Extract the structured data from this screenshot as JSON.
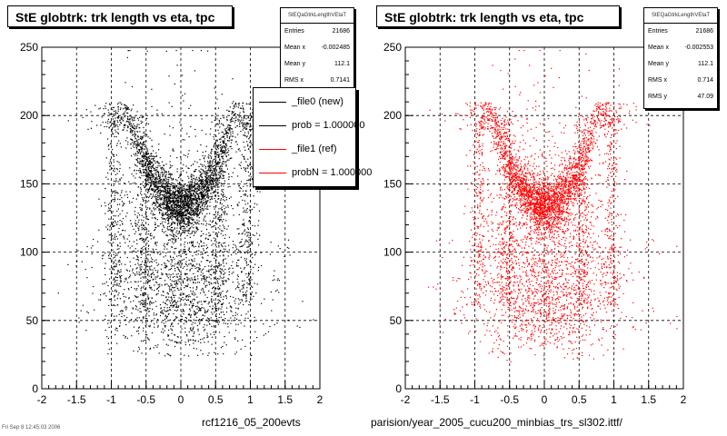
{
  "chart_data": [
    {
      "type": "scatter",
      "title": "StE globtrk: trk length vs eta, tpc",
      "xlim": [
        -2,
        2
      ],
      "ylim": [
        0,
        250
      ],
      "x_ticks": [
        "-2",
        "-1.5",
        "-1",
        "-0.5",
        "0",
        "0.5",
        "1",
        "1.5",
        "2"
      ],
      "y_ticks": [
        "0",
        "50",
        "100",
        "150",
        "200",
        "250"
      ],
      "grid": true,
      "marker_color": "#000000",
      "stats": {
        "name": "StEQaGtrkLengthVEtaT",
        "rows": [
          {
            "label": "Entries",
            "value": "21686"
          },
          {
            "label": "Mean x",
            "value": "-0.002485"
          },
          {
            "label": "Mean y",
            "value": "112.1"
          },
          {
            "label": "RMS x",
            "value": "0.7141"
          }
        ]
      },
      "legend": {
        "entries": [
          {
            "label": "_file0 (new)",
            "color": "#000000"
          },
          {
            "label": "prob = 1.000000",
            "color": "#000000"
          },
          {
            "label": "_file1 (ref)",
            "color": "#ff0000"
          },
          {
            "label": "probN = 1.000000",
            "color": "#ff0000"
          }
        ]
      },
      "footer_label": "rcf1216_05_200evts"
    },
    {
      "type": "scatter",
      "title": "StE globtrk: trk length vs eta, tpc",
      "xlim": [
        -2,
        2
      ],
      "ylim": [
        0,
        250
      ],
      "x_ticks": [
        "-2",
        "-1.5",
        "-1",
        "-0.5",
        "0",
        "0.5",
        "1",
        "1.5",
        "2"
      ],
      "y_ticks": [
        "0",
        "50",
        "100",
        "150",
        "200",
        "250"
      ],
      "grid": true,
      "marker_color": "#ff0000",
      "stats": {
        "name": "StEQaGtrkLengthVEtaT",
        "rows": [
          {
            "label": "Entries",
            "value": "21686"
          },
          {
            "label": "Mean x",
            "value": "-0.002553"
          },
          {
            "label": "Mean y",
            "value": "112.1"
          },
          {
            "label": "RMS x",
            "value": "0.714"
          },
          {
            "label": "RMS y",
            "value": "47.09"
          }
        ]
      },
      "footer_label": "parision/year_2005_cucu200_minbias_trs_sl302.ittf/"
    }
  ],
  "page": {
    "footer_small": "Fri Sep 8 12:45:03 2006"
  }
}
